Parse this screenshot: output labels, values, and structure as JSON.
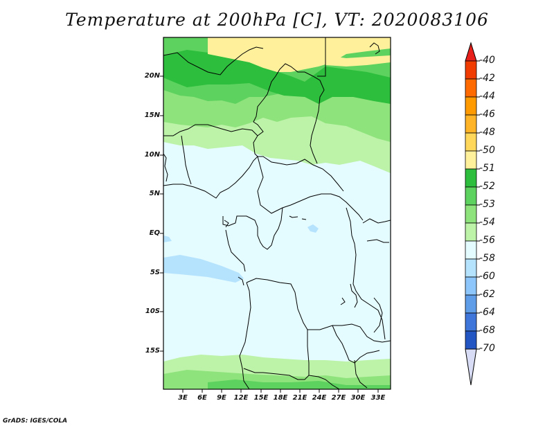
{
  "title": "Temperature at 200hPa [C], VT: 2020083106",
  "footer": "GrADS: IGES/COLA",
  "map": {
    "lat_labels": [
      "20N",
      "15N",
      "10N",
      "5N",
      "EQ",
      "5S",
      "10S",
      "15S"
    ],
    "lon_labels": [
      "3E",
      "6E",
      "9E",
      "12E",
      "15E",
      "18E",
      "21E",
      "24E",
      "27E",
      "30E",
      "33E"
    ]
  },
  "colorbar": {
    "levels": [
      "-40",
      "-42",
      "-44",
      "-46",
      "-48",
      "-50",
      "-51",
      "-52",
      "-53",
      "-54",
      "-56",
      "-58",
      "-60",
      "-62",
      "-64",
      "-68",
      "-70"
    ],
    "colors": [
      "#f03c00",
      "#ff6a00",
      "#ff9a00",
      "#ffb326",
      "#ffd75a",
      "#fff09c",
      "#2cbe3c",
      "#5dd25e",
      "#8fe37c",
      "#bcf3a8",
      "#e4fbff",
      "#b5e3fe",
      "#8cc6fa",
      "#5f9de8",
      "#3e76d9",
      "#2456c3",
      "#0c2a8c",
      "#0a1870",
      "#d8ddf5"
    ],
    "top_color": "#e8201c",
    "bottom_color": "#d8ddf5"
  }
}
